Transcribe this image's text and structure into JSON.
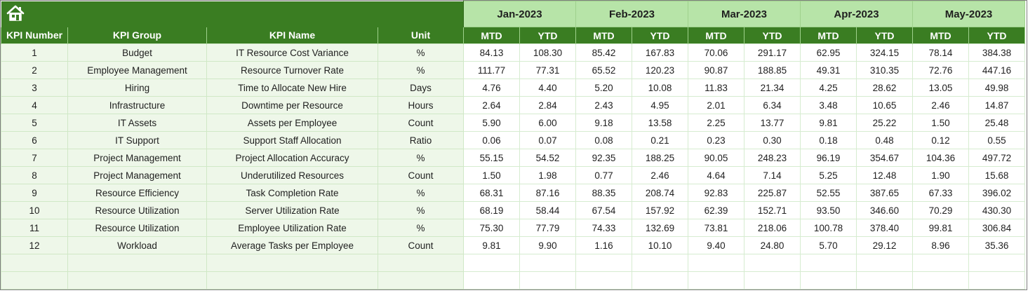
{
  "months": [
    "Jan-2023",
    "Feb-2023",
    "Mar-2023",
    "Apr-2023",
    "May-2023"
  ],
  "sub_headers": [
    "MTD",
    "YTD"
  ],
  "columns": {
    "kpi_number": "KPI Number",
    "kpi_group": "KPI Group",
    "kpi_name": "KPI Name",
    "unit": "Unit"
  },
  "icon": "home-icon",
  "colors": {
    "header_green": "#3a7d22",
    "month_green": "#b7e4a8",
    "row_tint": "#eef7e9"
  },
  "rows": [
    {
      "num": "1",
      "group": "Budget",
      "name": "IT Resource Cost Variance",
      "unit": "%",
      "vals": [
        "84.13",
        "108.30",
        "85.42",
        "167.83",
        "70.06",
        "291.17",
        "62.95",
        "324.15",
        "78.14",
        "384.38"
      ]
    },
    {
      "num": "2",
      "group": "Employee Management",
      "name": "Resource Turnover Rate",
      "unit": "%",
      "vals": [
        "111.77",
        "77.31",
        "65.52",
        "120.23",
        "90.87",
        "188.85",
        "49.31",
        "310.35",
        "72.76",
        "447.16"
      ]
    },
    {
      "num": "3",
      "group": "Hiring",
      "name": "Time to Allocate New Hire",
      "unit": "Days",
      "vals": [
        "4.76",
        "4.40",
        "5.20",
        "10.08",
        "11.83",
        "21.34",
        "4.25",
        "28.62",
        "13.05",
        "49.98"
      ]
    },
    {
      "num": "4",
      "group": "Infrastructure",
      "name": "Downtime per Resource",
      "unit": "Hours",
      "vals": [
        "2.64",
        "2.84",
        "2.43",
        "4.95",
        "2.01",
        "6.34",
        "3.48",
        "10.65",
        "2.46",
        "14.87"
      ]
    },
    {
      "num": "5",
      "group": "IT Assets",
      "name": "Assets per Employee",
      "unit": "Count",
      "vals": [
        "5.90",
        "6.00",
        "9.18",
        "13.58",
        "2.25",
        "13.77",
        "9.81",
        "25.22",
        "1.50",
        "25.48"
      ]
    },
    {
      "num": "6",
      "group": "IT Support",
      "name": "Support Staff Allocation",
      "unit": "Ratio",
      "vals": [
        "0.06",
        "0.07",
        "0.08",
        "0.21",
        "0.23",
        "0.30",
        "0.18",
        "0.48",
        "0.12",
        "0.55"
      ]
    },
    {
      "num": "7",
      "group": "Project Management",
      "name": "Project Allocation Accuracy",
      "unit": "%",
      "vals": [
        "55.15",
        "54.52",
        "92.35",
        "188.25",
        "90.05",
        "248.23",
        "96.19",
        "354.67",
        "104.36",
        "497.72"
      ]
    },
    {
      "num": "8",
      "group": "Project Management",
      "name": "Underutilized Resources",
      "unit": "Count",
      "vals": [
        "1.50",
        "1.98",
        "0.77",
        "2.46",
        "4.64",
        "7.14",
        "5.25",
        "12.48",
        "1.90",
        "15.68"
      ]
    },
    {
      "num": "9",
      "group": "Resource Efficiency",
      "name": "Task Completion Rate",
      "unit": "%",
      "vals": [
        "68.31",
        "87.16",
        "88.35",
        "208.74",
        "92.83",
        "225.87",
        "52.55",
        "387.65",
        "67.33",
        "396.02"
      ]
    },
    {
      "num": "10",
      "group": "Resource Utilization",
      "name": "Server Utilization Rate",
      "unit": "%",
      "vals": [
        "68.19",
        "58.44",
        "67.54",
        "157.92",
        "62.39",
        "152.71",
        "93.50",
        "346.60",
        "70.29",
        "430.30"
      ]
    },
    {
      "num": "11",
      "group": "Resource Utilization",
      "name": "Employee Utilization Rate",
      "unit": "%",
      "vals": [
        "75.30",
        "77.79",
        "74.33",
        "132.69",
        "73.81",
        "218.06",
        "100.78",
        "378.40",
        "99.81",
        "306.84"
      ]
    },
    {
      "num": "12",
      "group": "Workload",
      "name": "Average Tasks per Employee",
      "unit": "Count",
      "vals": [
        "9.81",
        "9.90",
        "1.16",
        "10.10",
        "9.40",
        "24.80",
        "5.70",
        "29.12",
        "8.96",
        "35.36"
      ]
    }
  ],
  "empty_rows": 2
}
